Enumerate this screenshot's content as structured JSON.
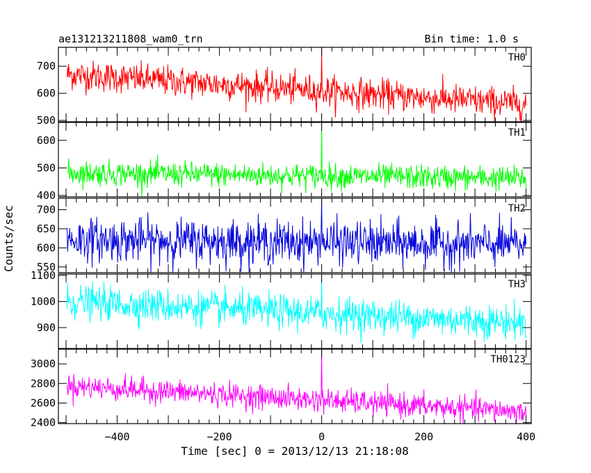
{
  "chart_data": {
    "type": "line",
    "title": "ae131213211808_wam0_trn",
    "subtitle": "Bin time: 1.0 s",
    "xlabel": "Time [sec] 0 = 2013/12/13 21:18:08",
    "ylabel": "Counts/sec",
    "xlim": [
      -515,
      410
    ],
    "x_ticks": [
      -400,
      -200,
      0,
      200,
      400
    ],
    "x_start": -498,
    "x_end": 400,
    "x_step": 1,
    "grid": false,
    "legend": "none",
    "series": [
      {
        "name": "TH0",
        "color": "#ff0000",
        "ylim": [
          495,
          770
        ],
        "y_ticks": [
          500,
          600,
          700
        ],
        "mean_start": 670,
        "mean_end": 560,
        "noise": 28,
        "spike": {
          "x": 0,
          "y": 770
        }
      },
      {
        "name": "TH1",
        "color": "#00ff00",
        "ylim": [
          395,
          665
        ],
        "y_ticks": [
          400,
          500,
          600
        ],
        "mean_start": 482,
        "mean_end": 462,
        "noise": 22,
        "spike": {
          "x": 0,
          "y": 665
        }
      },
      {
        "name": "TH2",
        "color": "#0000dd",
        "ylim": [
          535,
          730
        ],
        "y_ticks": [
          550,
          600,
          650,
          700
        ],
        "mean_start": 622,
        "mean_end": 608,
        "noise": 28,
        "spike": {
          "x": 0,
          "y": 730
        }
      },
      {
        "name": "TH3",
        "color": "#00ffff",
        "ylim": [
          820,
          1105
        ],
        "y_ticks": [
          900,
          1000,
          1100
        ],
        "mean_start": 1000,
        "mean_end": 918,
        "noise": 32,
        "spike": {
          "x": 0,
          "y": 1100
        }
      },
      {
        "name": "TH0123",
        "color": "#ff00ff",
        "ylim": [
          2390,
          3150
        ],
        "y_ticks": [
          2400,
          2600,
          2800,
          3000
        ],
        "mean_start": 2775,
        "mean_end": 2510,
        "noise": 60,
        "spike": {
          "x": 0,
          "y": 3150
        }
      }
    ]
  }
}
